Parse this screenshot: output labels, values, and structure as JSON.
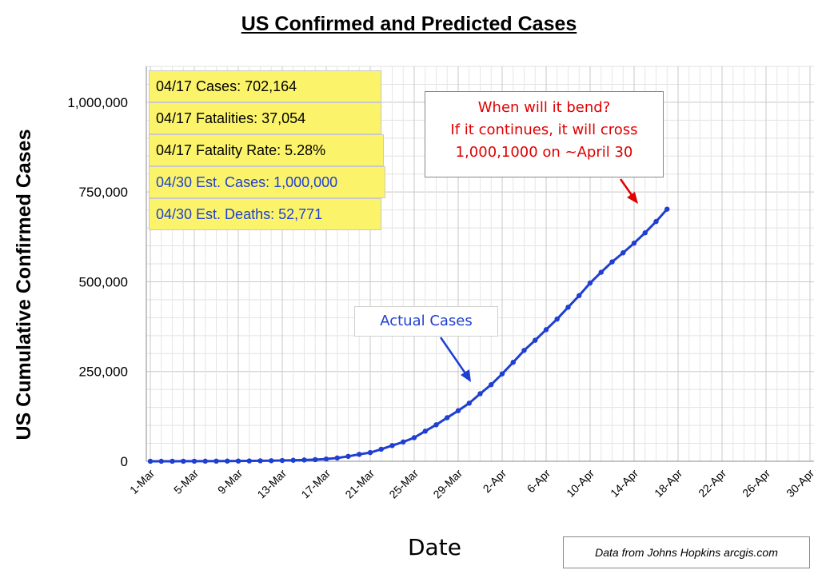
{
  "chart_data": {
    "type": "line",
    "title": "US Confirmed and Predicted Cases",
    "xlabel": "Date",
    "ylabel": "US Cumulative Confirmed Cases",
    "ylim": [
      0,
      1100000
    ],
    "grid": true,
    "ytick_labels": [
      "0",
      "250,000",
      "500,000",
      "750,000",
      "1,000,000"
    ],
    "ytick_values": [
      0,
      250000,
      500000,
      750000,
      1000000
    ],
    "xtick_labels": [
      "1-Mar",
      "5-Mar",
      "9-Mar",
      "13-Mar",
      "17-Mar",
      "21-Mar",
      "25-Mar",
      "29-Mar",
      "2-Apr",
      "6-Apr",
      "10-Apr",
      "14-Apr",
      "18-Apr",
      "22-Apr",
      "26-Apr",
      "30-Apr"
    ],
    "x_range": [
      "1-Mar",
      "30-Apr"
    ],
    "series": [
      {
        "name": "Actual Cases",
        "color": "#1f3fd0",
        "x": [
          "1-Mar",
          "2-Mar",
          "3-Mar",
          "4-Mar",
          "5-Mar",
          "6-Mar",
          "7-Mar",
          "8-Mar",
          "9-Mar",
          "10-Mar",
          "11-Mar",
          "12-Mar",
          "13-Mar",
          "14-Mar",
          "15-Mar",
          "16-Mar",
          "17-Mar",
          "18-Mar",
          "19-Mar",
          "20-Mar",
          "21-Mar",
          "22-Mar",
          "23-Mar",
          "24-Mar",
          "25-Mar",
          "26-Mar",
          "27-Mar",
          "28-Mar",
          "29-Mar",
          "30-Mar",
          "31-Mar",
          "1-Apr",
          "2-Apr",
          "3-Apr",
          "4-Apr",
          "5-Apr",
          "6-Apr",
          "7-Apr",
          "8-Apr",
          "9-Apr",
          "10-Apr",
          "11-Apr",
          "12-Apr",
          "13-Apr",
          "14-Apr",
          "15-Apr",
          "16-Apr",
          "17-Apr"
        ],
        "values": [
          75,
          100,
          124,
          158,
          221,
          319,
          435,
          541,
          704,
          994,
          1301,
          1630,
          2183,
          2770,
          3613,
          4596,
          6344,
          9197,
          13779,
          19367,
          24192,
          33592,
          43781,
          53740,
          65778,
          83836,
          101657,
          121478,
          140886,
          161807,
          188172,
          213372,
          243453,
          275586,
          308850,
          337072,
          366667,
          396223,
          429052,
          461437,
          496535,
          526396,
          555313,
          580619,
          607670,
          636350,
          667801,
          702164
        ]
      }
    ],
    "annotations": {
      "info_boxes": [
        {
          "text": "04/17 Cases: 702,164",
          "color": "black"
        },
        {
          "text": "04/17 Fatalities: 37,054",
          "color": "black"
        },
        {
          "text": "04/17 Fatality Rate: 5.28%",
          "color": "black"
        },
        {
          "text": "04/30 Est. Cases: 1,000,000",
          "color": "blue"
        },
        {
          "text": "04/30 Est. Deaths: 52,771",
          "color": "blue"
        }
      ],
      "callout_lines": [
        "When will it bend?",
        "If it continues, it will cross",
        "1,000,1000 on ~April 30"
      ],
      "actual_cases_label": "Actual Cases",
      "source": "Data from Johns Hopkins arcgis.com"
    }
  }
}
